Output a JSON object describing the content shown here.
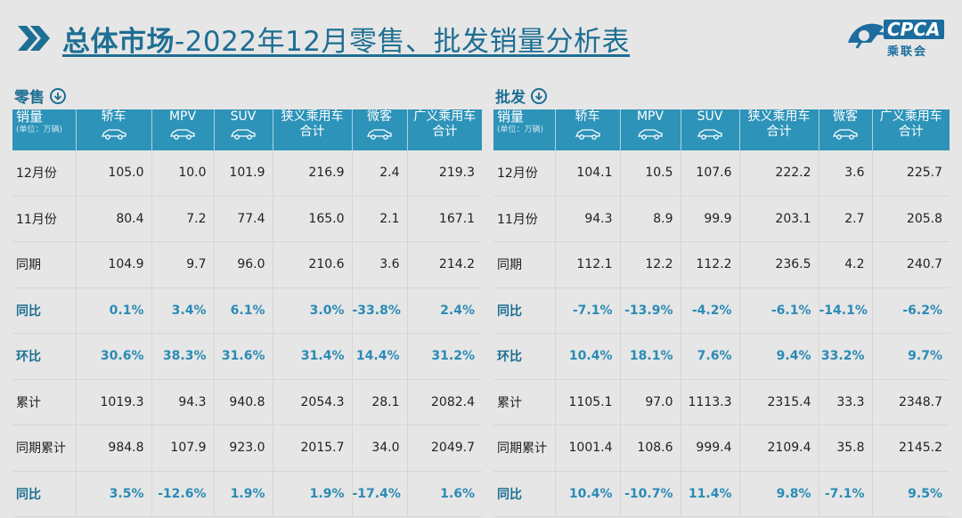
{
  "title": {
    "bold": "总体市场",
    "rest": "-2022年12月零售、批发销量分析表"
  },
  "logo": {
    "text": "CPCA",
    "sub": "乘联会"
  },
  "retail": {
    "label": "零售",
    "header": {
      "first": "销量",
      "first_unit": "(单位：万辆)",
      "cols": [
        "轿车",
        "MPV",
        "SUV",
        "狭义乘用车",
        "微客",
        "广义乘用车"
      ],
      "col_sub": [
        "",
        "",
        "",
        "合计",
        "",
        "合计"
      ]
    },
    "rows": [
      {
        "label": "12月份",
        "values": [
          "105.0",
          "10.0",
          "101.9",
          "216.9",
          "2.4",
          "219.3"
        ]
      },
      {
        "label": "11月份",
        "values": [
          "80.4",
          "7.2",
          "77.4",
          "165.0",
          "2.1",
          "167.1"
        ]
      },
      {
        "label": "同期",
        "values": [
          "104.9",
          "9.7",
          "96.0",
          "210.6",
          "3.6",
          "214.2"
        ]
      },
      {
        "label": "同比",
        "values": [
          "0.1%",
          "3.4%",
          "6.1%",
          "3.0%",
          "-33.8%",
          "2.4%"
        ],
        "pct": true
      },
      {
        "label": "环比",
        "values": [
          "30.6%",
          "38.3%",
          "31.6%",
          "31.4%",
          "14.4%",
          "31.2%"
        ],
        "pct": true
      },
      {
        "label": "累计",
        "values": [
          "1019.3",
          "94.3",
          "940.8",
          "2054.3",
          "28.1",
          "2082.4"
        ]
      },
      {
        "label": "同期累计",
        "values": [
          "984.8",
          "107.9",
          "923.0",
          "2015.7",
          "34.0",
          "2049.7"
        ]
      },
      {
        "label": "同比",
        "values": [
          "3.5%",
          "-12.6%",
          "1.9%",
          "1.9%",
          "-17.4%",
          "1.6%"
        ],
        "pct": true
      }
    ]
  },
  "wholesale": {
    "label": "批发",
    "header": {
      "first": "销量",
      "first_unit": "(单位：万辆)",
      "cols": [
        "轿车",
        "MPV",
        "SUV",
        "狭义乘用车",
        "微客",
        "广义乘用车"
      ],
      "col_sub": [
        "",
        "",
        "",
        "合计",
        "",
        "合计"
      ]
    },
    "rows": [
      {
        "label": "12月份",
        "values": [
          "104.1",
          "10.5",
          "107.6",
          "222.2",
          "3.6",
          "225.7"
        ]
      },
      {
        "label": "11月份",
        "values": [
          "94.3",
          "8.9",
          "99.9",
          "203.1",
          "2.7",
          "205.8"
        ]
      },
      {
        "label": "同期",
        "values": [
          "112.1",
          "12.2",
          "112.2",
          "236.5",
          "4.2",
          "240.7"
        ]
      },
      {
        "label": "同比",
        "values": [
          "-7.1%",
          "-13.9%",
          "-4.2%",
          "-6.1%",
          "-14.1%",
          "-6.2%"
        ],
        "pct": true
      },
      {
        "label": "环比",
        "values": [
          "10.4%",
          "18.1%",
          "7.6%",
          "9.4%",
          "33.2%",
          "9.7%"
        ],
        "pct": true
      },
      {
        "label": "累计",
        "values": [
          "1105.1",
          "97.0",
          "1113.3",
          "2315.4",
          "33.3",
          "2348.7"
        ]
      },
      {
        "label": "同期累计",
        "values": [
          "1001.4",
          "108.6",
          "999.4",
          "2109.4",
          "35.8",
          "2145.2"
        ]
      },
      {
        "label": "同比",
        "values": [
          "10.4%",
          "-10.7%",
          "11.4%",
          "9.8%",
          "-7.1%",
          "9.5%"
        ],
        "pct": true
      }
    ]
  }
}
